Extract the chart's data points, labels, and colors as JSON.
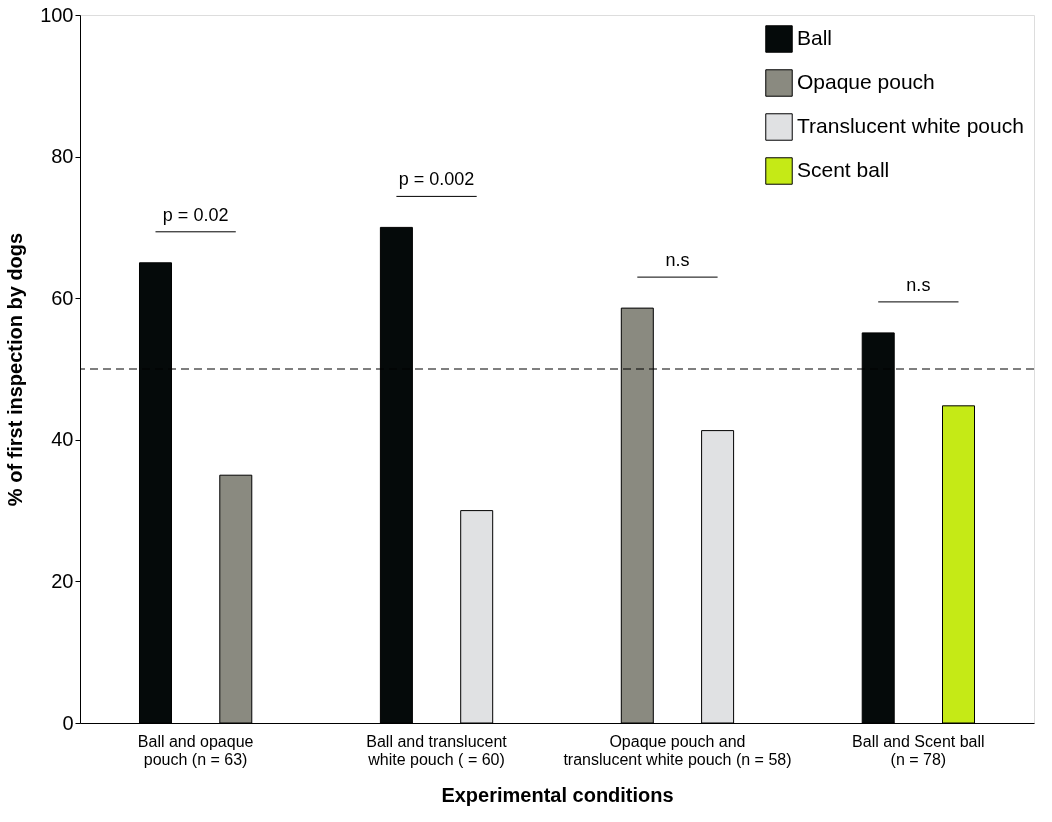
{
  "chart_data": {
    "type": "bar",
    "categories": [
      "Ball and opaque\npouch (n = 63)",
      "Ball and translucent\nwhite pouch ( = 60)",
      "Opaque pouch and\ntranslucent white pouch (n = 58)",
      "Ball and Scent ball\n(n = 78)"
    ],
    "series": [
      {
        "name": "Ball",
        "color": "#050a0a",
        "values": [
          65,
          70,
          null,
          55.1
        ]
      },
      {
        "name": "Opaque pouch",
        "color": "#8a8a80",
        "values": [
          35,
          null,
          58.6,
          null
        ]
      },
      {
        "name": "Translucent white pouch",
        "color": "#e0e1e3",
        "values": [
          null,
          30,
          41.3,
          null
        ]
      },
      {
        "name": "Scent ball",
        "color": "#c5ea16",
        "values": [
          null,
          null,
          null,
          44.8
        ]
      }
    ],
    "xlabel": "Experimental conditions",
    "ylabel": "% of first inspection by dogs",
    "ylim": [
      0,
      100
    ],
    "yticks": [
      0,
      20,
      40,
      60,
      80,
      100
    ],
    "legend": "top right",
    "ref_lines": [
      {
        "axis": "y",
        "value": 50,
        "line_style": "dashed",
        "color": "#000000"
      }
    ],
    "annotations": [
      "p = 0.02",
      "p = 0.002",
      "n.s",
      "n.s"
    ]
  }
}
